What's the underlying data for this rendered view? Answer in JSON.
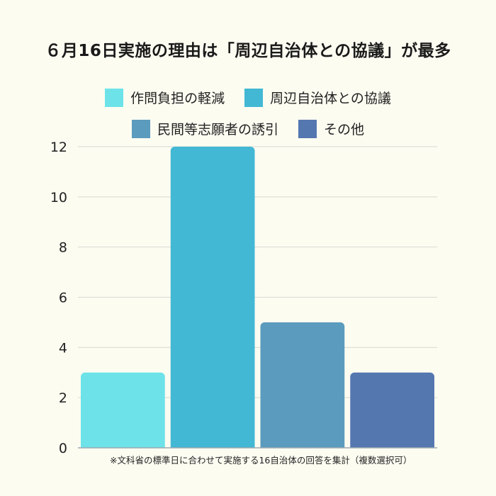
{
  "chart_data": {
    "type": "bar",
    "title": "６月16日実施の理由は「周辺自治体との協議」が最多",
    "categories": [
      "作問負担の軽減",
      "周辺自治体との協議",
      "民間等志願者の誘引",
      "その他"
    ],
    "series": [
      {
        "name": "作問負担の軽減",
        "value": 3,
        "color": "#6de3e9"
      },
      {
        "name": "周辺自治体との協議",
        "value": 12,
        "color": "#42b8d4"
      },
      {
        "name": "民間等志願者の誘引",
        "value": 5,
        "color": "#5b9bbd"
      },
      {
        "name": "その他",
        "value": 3,
        "color": "#5577b0"
      }
    ],
    "yticks": [
      "0",
      "2",
      "4",
      "6",
      "8",
      "10",
      "12"
    ],
    "ylim": [
      0,
      12
    ],
    "grid": true,
    "legend_position": "top"
  },
  "footnote": "※文科省の標準日に合わせて実施する16自治体の回答を集計（複数選択可）"
}
